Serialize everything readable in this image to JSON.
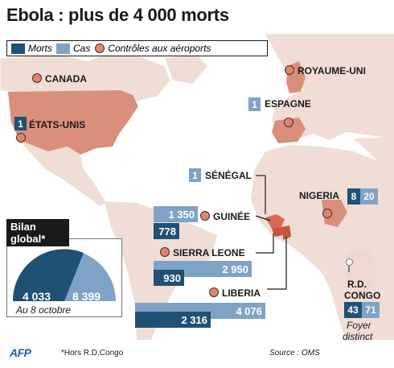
{
  "header": {
    "title": "Ebola : plus de 4 000 morts"
  },
  "legend": {
    "morts": "Morts",
    "cas": "Cas",
    "controles": "Contrôles aux aéroports",
    "colors": {
      "morts": "#1f5175",
      "cas": "#7fa3c6",
      "controles": "#e8826a"
    }
  },
  "countries": {
    "canada": "CANADA",
    "royaume_uni": "ROYAUME-UNI",
    "espagne": {
      "name": "ESPAGNE",
      "cas": "1"
    },
    "etats_unis": {
      "name": "ÉTATS-UNIS",
      "cas": "1"
    },
    "senegal": {
      "name": "SÉNÉGAL",
      "cas": "1"
    },
    "nigeria": {
      "name": "NIGERIA",
      "cas": "20",
      "morts": "8"
    },
    "guinee": {
      "name": "GUINÉE",
      "cas": "1 350",
      "morts": "778"
    },
    "sierra_leone": {
      "name": "SIERRA LEONE",
      "cas": "2 950",
      "morts": "930"
    },
    "liberia": {
      "name": "LIBERIA",
      "cas": "4 076",
      "morts": "2 316"
    },
    "rdc": {
      "name_line1": "R.D.",
      "name_line2": "CONGO",
      "cas": "71",
      "morts": "43",
      "note_line1": "Foyer",
      "note_line2": "distinct"
    }
  },
  "bilan": {
    "title_line1": "Bilan",
    "title_line2": "global*",
    "morts": "4 033",
    "cas": "8 399",
    "date": "Au 8 octobre"
  },
  "footer": {
    "logo": "AFP",
    "footnote": "*Hors R.D.Congo",
    "source": "Source : OMS"
  }
}
